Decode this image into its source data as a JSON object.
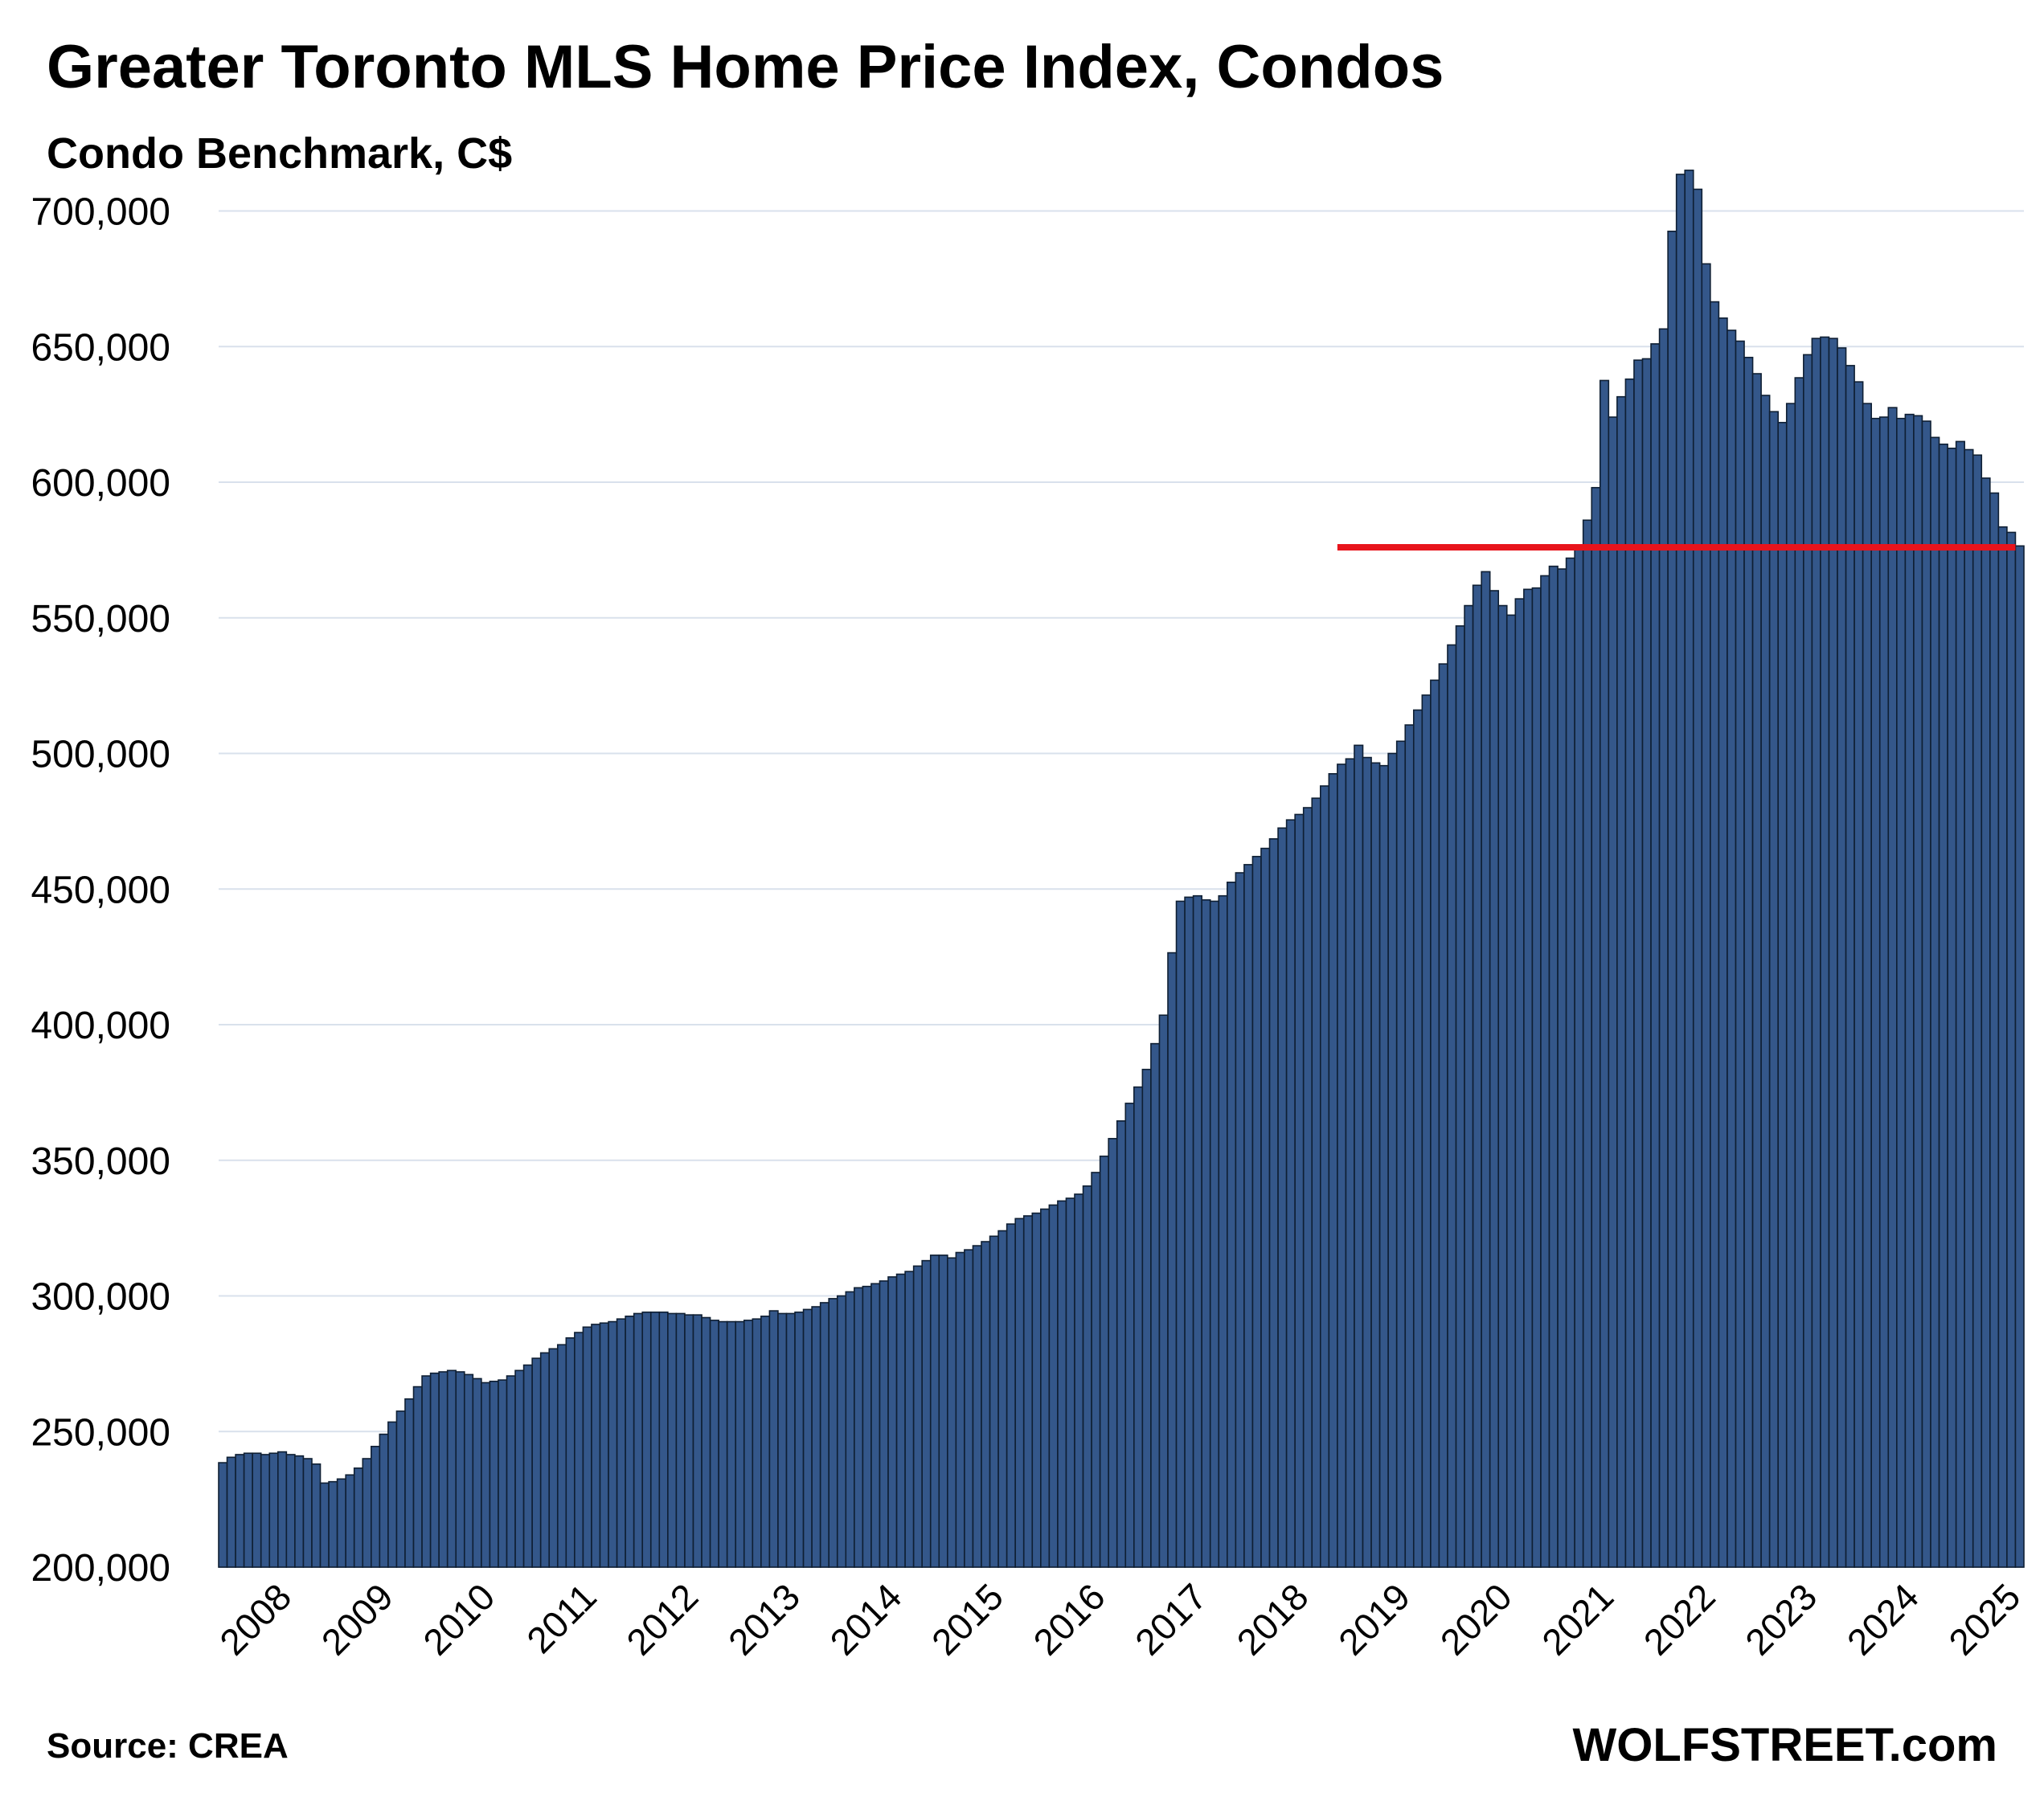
{
  "chart_data": {
    "type": "bar",
    "title": "Greater Toronto MLS Home Price Index, Condos",
    "subtitle": "Condo Benchmark, C$",
    "source": "Source: CREA",
    "brand": "WOLFSTREET.com",
    "ylim": [
      200000,
      720000
    ],
    "y_ticks": [
      "200,000",
      "250,000",
      "300,000",
      "350,000",
      "400,000",
      "450,000",
      "500,000",
      "550,000",
      "600,000",
      "650,000",
      "700,000"
    ],
    "x_ticks": [
      "2008",
      "2009",
      "2010",
      "2011",
      "2012",
      "2013",
      "2014",
      "2015",
      "2016",
      "2017",
      "2018",
      "2019",
      "2020",
      "2021",
      "2022",
      "2023",
      "2024",
      "2025"
    ],
    "grid": true,
    "colors": {
      "bar": "#34578a",
      "bar_edge": "#0f1f33",
      "reference_line": "#e8141c",
      "grid": "#d9e1ec"
    },
    "reference_line": {
      "value": 576000,
      "from": "2019-01",
      "to": "2025-08"
    },
    "series": [
      {
        "start": "2008-01",
        "frequency": "monthly",
        "values": [
          238500,
          240500,
          241500,
          242000,
          242000,
          241500,
          242000,
          242500,
          241500,
          241000,
          240000,
          238000,
          231000,
          231500,
          232500,
          234000,
          236500,
          240000,
          244500,
          249000,
          253500,
          257500,
          262000,
          266500,
          270500,
          271500,
          272000,
          272500,
          272000,
          271000,
          269500,
          268000,
          268500,
          269000,
          270500,
          272500,
          274500,
          277000,
          279000,
          280500,
          282000,
          284500,
          286500,
          288500,
          289500,
          290000,
          290500,
          291500,
          292500,
          293500,
          294000,
          294000,
          294000,
          293500,
          293500,
          293000,
          293000,
          292000,
          291000,
          290500,
          290500,
          290500,
          291000,
          291500,
          292500,
          294500,
          293500,
          293500,
          294000,
          295000,
          296000,
          297500,
          299000,
          300000,
          301500,
          303000,
          303500,
          304500,
          305500,
          307000,
          308000,
          309000,
          311000,
          313000,
          315000,
          315000,
          314000,
          316000,
          317000,
          318500,
          320000,
          322000,
          324000,
          326500,
          328500,
          329500,
          330500,
          332000,
          333500,
          335000,
          336000,
          337500,
          340500,
          345500,
          351500,
          358000,
          364500,
          371000,
          377000,
          383500,
          393000,
          403500,
          426500,
          445500,
          447000,
          447500,
          446000,
          445500,
          447500,
          452500,
          456000,
          459000,
          462000,
          465000,
          468500,
          472500,
          475500,
          477500,
          480000,
          483500,
          488000,
          492500,
          496000,
          498000,
          503000,
          498500,
          496500,
          495500,
          500000,
          504500,
          510500,
          516000,
          521500,
          527000,
          533000,
          540000,
          547000,
          554500,
          562000,
          567000,
          560000,
          554500,
          551000,
          557000,
          560500,
          561000,
          565500,
          569000,
          568000,
          572000,
          576500,
          586000,
          598000,
          637500,
          624000,
          631500,
          638000,
          645000,
          645500,
          651000,
          656500,
          692500,
          713500,
          715000,
          708000,
          680500,
          666500,
          660500,
          656000,
          652000,
          646000,
          640000,
          632000,
          626000,
          622000,
          629000,
          638500,
          647000,
          653000,
          653500,
          653000,
          649500,
          643000,
          637000,
          629000,
          623500,
          624000,
          627500,
          623500,
          625000,
          624500,
          622500,
          616500,
          614000,
          612500,
          615000,
          612000,
          610000,
          601500,
          596000,
          583500,
          581500,
          576500
        ]
      }
    ]
  }
}
